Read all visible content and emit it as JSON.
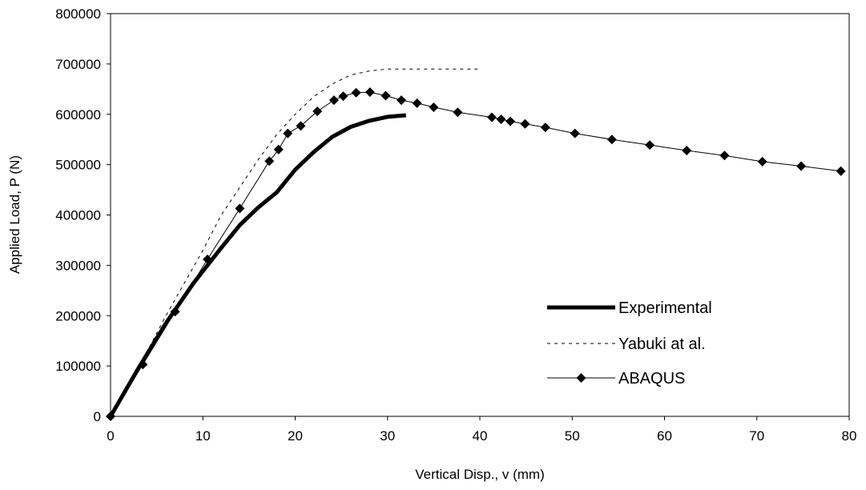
{
  "chart_data": {
    "type": "line",
    "title": "",
    "xlabel": "Vertical Disp., v (mm)",
    "ylabel": "Applied Load, P (N)",
    "xlim": [
      0,
      80
    ],
    "ylim": [
      0,
      800000
    ],
    "x_ticks": [
      0,
      10,
      20,
      30,
      40,
      50,
      60,
      70,
      80
    ],
    "y_ticks": [
      0,
      100000,
      200000,
      300000,
      400000,
      500000,
      600000,
      700000,
      800000
    ],
    "x_tick_labels": [
      "0",
      "10",
      "20",
      "30",
      "40",
      "50",
      "60",
      "70",
      "80"
    ],
    "y_tick_labels": [
      "0",
      "100000",
      "200000",
      "300000",
      "400000",
      "500000",
      "600000",
      "700000",
      "800000"
    ],
    "grid": false,
    "legend_position": "bottom-right",
    "series": [
      {
        "name": "Experimental",
        "style": "thick-solid",
        "color": "#000000",
        "marker": "none",
        "x": [
          0,
          3,
          6,
          9,
          12,
          14,
          16,
          18,
          20,
          22,
          24,
          26,
          28,
          30,
          32
        ],
        "y": [
          0,
          95000,
          185000,
          265000,
          335000,
          380000,
          415000,
          445000,
          490000,
          525000,
          555000,
          575000,
          587000,
          595000,
          598000
        ]
      },
      {
        "name": "Yabuki at al.",
        "style": "dashed",
        "color": "#000000",
        "marker": "none",
        "x": [
          0,
          2,
          4,
          6,
          8,
          10,
          12,
          14,
          16,
          18,
          20,
          22,
          24,
          26,
          28,
          30,
          32,
          34,
          36,
          38,
          40
        ],
        "y": [
          0,
          65000,
          130000,
          200000,
          265000,
          330000,
          400000,
          455000,
          510000,
          560000,
          600000,
          635000,
          660000,
          678000,
          686000,
          690000,
          690000,
          690000,
          690000,
          690000,
          690000
        ]
      },
      {
        "name": "ABAQUS",
        "style": "thin-solid",
        "color": "#000000",
        "marker": "diamond",
        "x": [
          0,
          3.5,
          7,
          10.5,
          14,
          17.2,
          18.2,
          19.2,
          20.6,
          22.4,
          24.2,
          25.2,
          26.6,
          28.1,
          29.8,
          31.5,
          33.2,
          35,
          37.6,
          41.3,
          42.3,
          43.3,
          44.9,
          47.1,
          50.3,
          54.3,
          58.4,
          62.4,
          66.5,
          70.6,
          74.8,
          79.1
        ],
        "y": [
          0,
          103000,
          208000,
          312000,
          413000,
          507000,
          530000,
          562000,
          577000,
          606000,
          628000,
          636000,
          643000,
          644000,
          637000,
          628000,
          622000,
          614000,
          604000,
          594000,
          590000,
          586000,
          581000,
          574000,
          562000,
          550000,
          539000,
          528000,
          518000,
          506000,
          497000,
          487000
        ]
      }
    ]
  }
}
